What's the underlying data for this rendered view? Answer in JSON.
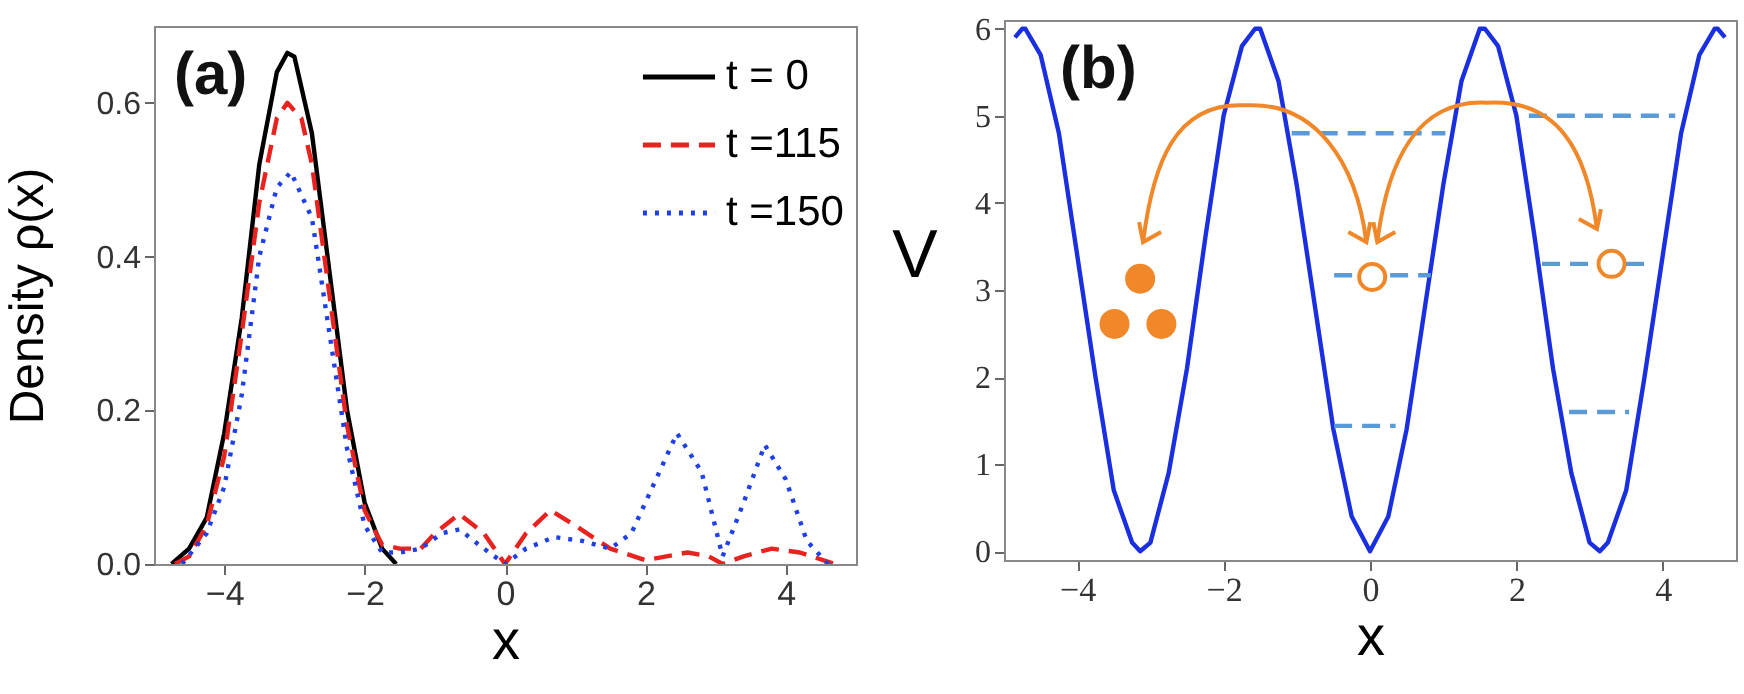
{
  "chart_data": [
    {
      "type": "line",
      "title": "(a)",
      "xlabel": "x",
      "ylabel": "Density ρ(x)",
      "xlim": [
        -5,
        5
      ],
      "ylim": [
        0,
        0.7
      ],
      "xticks": [
        -4,
        -2,
        0,
        2,
        4
      ],
      "yticks": [
        {
          "value": 0,
          "label": "0.0"
        },
        {
          "value": 0.2,
          "label": "0.2"
        },
        {
          "value": 0.4,
          "label": "0.4"
        },
        {
          "value": 0.6,
          "label": "0.6"
        }
      ],
      "legend": "top right",
      "series": [
        {
          "name": "t = 0",
          "color": "#000000",
          "line_style": "solid",
          "x": [
            -4.75,
            -4.5,
            -4.25,
            -4,
            -3.75,
            -3.5,
            -3.25,
            -3.1,
            -3,
            -2.75,
            -2.5,
            -2.25,
            -2,
            -1.75,
            -1.55
          ],
          "values": [
            0,
            0.02,
            0.06,
            0.17,
            0.32,
            0.52,
            0.64,
            0.665,
            0.66,
            0.56,
            0.38,
            0.2,
            0.08,
            0.02,
            0
          ]
        },
        {
          "name": "t =115",
          "color": "#e8231f",
          "line_style": "dashed",
          "x": [
            -4.7,
            -4.5,
            -4.25,
            -4,
            -3.75,
            -3.5,
            -3.25,
            -3.1,
            -2.9,
            -2.75,
            -2.5,
            -2.25,
            -2,
            -1.75,
            -1.5,
            -1.2,
            -1,
            -0.65,
            -0.3,
            0,
            0.3,
            0.65,
            1,
            1.5,
            2,
            2.3,
            2.6,
            2.9,
            3.1,
            3.4,
            3.8,
            4.2,
            4.7
          ],
          "values": [
            0,
            0.01,
            0.05,
            0.14,
            0.3,
            0.47,
            0.58,
            0.6,
            0.58,
            0.52,
            0.35,
            0.18,
            0.07,
            0.025,
            0.02,
            0.02,
            0.04,
            0.065,
            0.04,
            0,
            0.04,
            0.07,
            0.05,
            0.02,
            0.005,
            0.01,
            0.015,
            0.01,
            0,
            0.01,
            0.02,
            0.015,
            0
          ]
        },
        {
          "name": "t =150",
          "color": "#1f3fe8",
          "line_style": "dotted",
          "x": [
            -4.6,
            -4.25,
            -4,
            -3.75,
            -3.5,
            -3.25,
            -3.05,
            -2.75,
            -2.5,
            -2.25,
            -2,
            -1.75,
            -1.5,
            -1.2,
            -0.9,
            -0.65,
            -0.3,
            0,
            0.3,
            0.7,
            1.1,
            1.5,
            1.8,
            2.1,
            2.45,
            2.8,
            3.1,
            3.4,
            3.7,
            4,
            4.3,
            4.6
          ],
          "values": [
            0,
            0.04,
            0.1,
            0.22,
            0.4,
            0.49,
            0.51,
            0.45,
            0.3,
            0.15,
            0.05,
            0.015,
            0.015,
            0.02,
            0.04,
            0.045,
            0.02,
            0,
            0.02,
            0.035,
            0.03,
            0.02,
            0.04,
            0.1,
            0.17,
            0.12,
            0.01,
            0.08,
            0.155,
            0.11,
            0.03,
            0
          ]
        }
      ]
    },
    {
      "type": "line",
      "title": "(b)",
      "xlabel": "x",
      "ylabel": "V",
      "xlim": [
        -5,
        5
      ],
      "ylim": [
        -0.1,
        6.1
      ],
      "xticks": [
        -4,
        -2,
        0,
        2,
        4
      ],
      "yticks": [
        0,
        1,
        2,
        3,
        4,
        5,
        6
      ],
      "series": [
        {
          "color": "#1a2fe0",
          "line_style": "solid",
          "x": [
            -4.85,
            -4.75,
            -4.71,
            -4.5,
            -4.25,
            -4,
            -3.75,
            -3.5,
            -3.25,
            -3.14,
            -3,
            -2.75,
            -2.5,
            -2.25,
            -2,
            -1.75,
            -1.57,
            -1.5,
            -1.25,
            -1,
            -0.75,
            -0.5,
            -0.25,
            0,
            0.25,
            0.5,
            0.75,
            1,
            1.25,
            1.5,
            1.57,
            1.75,
            2,
            2.25,
            2.5,
            2.75,
            3,
            3.14,
            3.25,
            3.5,
            3.75,
            4,
            4.25,
            4.5,
            4.71,
            4.75,
            4.85
          ],
          "values": [
            5.9,
            6,
            6,
            5.7,
            4.8,
            3.4,
            2,
            0.7,
            0.1,
            0,
            0.1,
            0.9,
            2.1,
            3.6,
            5,
            5.8,
            6,
            6,
            5.4,
            4.2,
            2.8,
            1.4,
            0.4,
            0,
            0.4,
            1.4,
            2.8,
            4.2,
            5.4,
            6,
            6,
            5.8,
            5,
            3.6,
            2.1,
            0.9,
            0.1,
            0,
            0.1,
            0.7,
            2,
            3.4,
            4.8,
            5.7,
            6,
            6,
            5.9
          ]
        },
        {
          "color": "#5b9bd5",
          "line_style": "dashed",
          "x": [
            -1.07,
            1.03
          ],
          "values": [
            4.8,
            4.8
          ]
        },
        {
          "color": "#5b9bd5",
          "line_style": "dashed",
          "x": [
            2.17,
            4.17
          ],
          "values": [
            5,
            5
          ]
        },
        {
          "color": "#5b9bd5",
          "line_style": "dashed",
          "x": [
            -0.49,
            0.83
          ],
          "values": [
            3.17,
            3.17
          ]
        },
        {
          "color": "#5b9bd5",
          "line_style": "dashed",
          "x": [
            2.35,
            3.77
          ],
          "values": [
            3.3,
            3.3
          ]
        },
        {
          "color": "#5b9bd5",
          "line_style": "dashed",
          "x": [
            -0.49,
            0.35
          ],
          "values": [
            1.44,
            1.44
          ]
        },
        {
          "color": "#5b9bd5",
          "line_style": "dashed",
          "x": [
            2.72,
            3.54
          ],
          "values": [
            1.6,
            1.6
          ]
        }
      ]
    }
  ]
}
